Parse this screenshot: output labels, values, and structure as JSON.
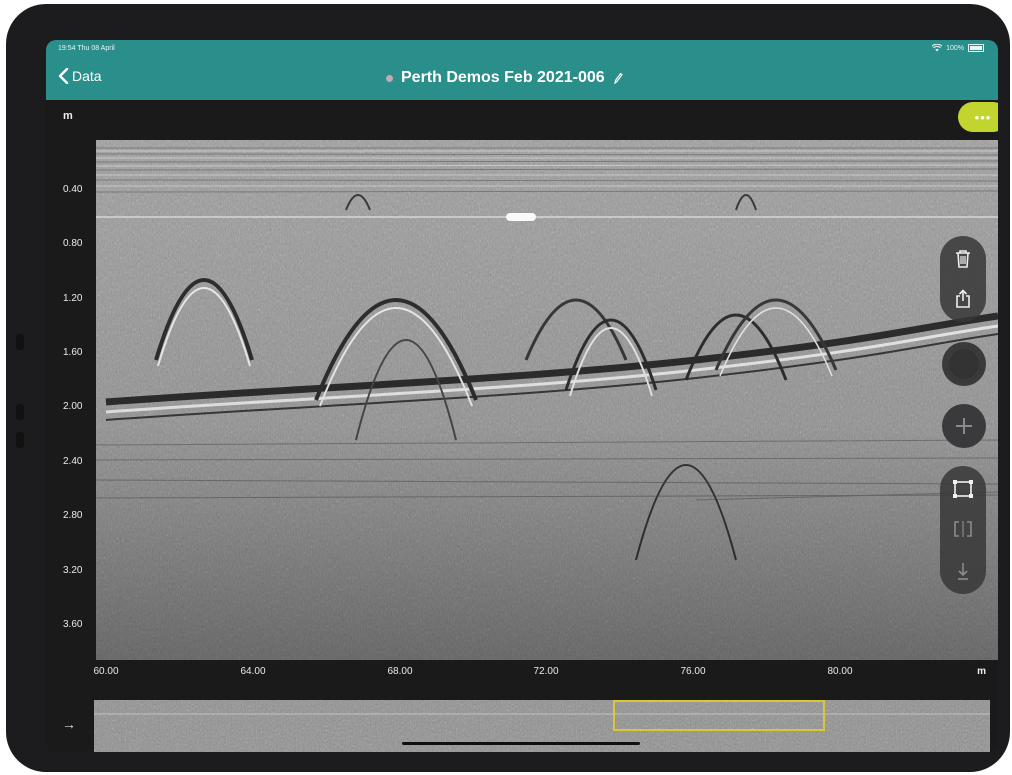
{
  "status_bar": {
    "time": "19:54 Thu 08 April",
    "battery": "100%"
  },
  "nav": {
    "back_label": "Data",
    "title": "Perth Demos Feb 2021-006"
  },
  "radar": {
    "y_unit": "m",
    "x_unit": "m",
    "y_ticks": [
      "0.40",
      "0.80",
      "1.20",
      "1.60",
      "2.00",
      "2.40",
      "2.80",
      "3.20",
      "3.60"
    ],
    "x_ticks": [
      "60.00",
      "64.00",
      "68.00",
      "72.00",
      "76.00",
      "80.00"
    ]
  },
  "toolbar": {
    "more_icon": "ellipsis-icon",
    "tools": [
      "trash-icon",
      "share-icon",
      "record-icon",
      "add-icon",
      "select-frame-icon",
      "split-view-icon",
      "download-icon"
    ]
  },
  "colors": {
    "accent": "#2a8e8a",
    "more_button": "#c2d52f",
    "selection": "#d9c833"
  }
}
